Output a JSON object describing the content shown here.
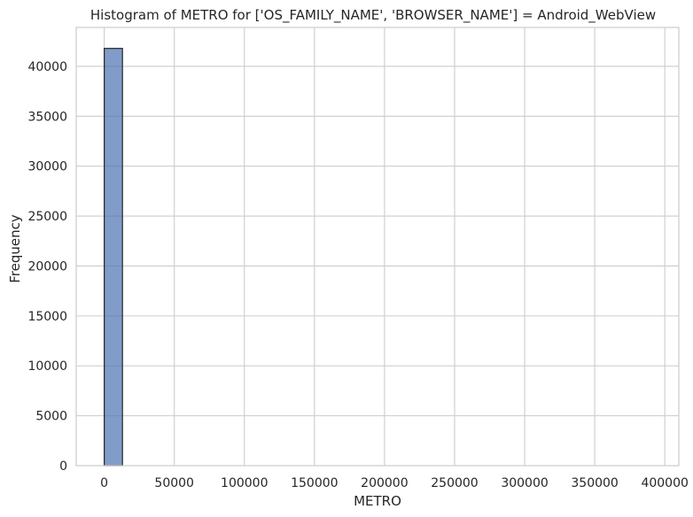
{
  "chart_data": {
    "type": "bar",
    "title": "Histogram of METRO for ['OS_FAMILY_NAME', 'BROWSER_NAME'] = Android_WebView",
    "xlabel": "METRO",
    "ylabel": "Frequency",
    "xlim": [
      -20000,
      410000
    ],
    "ylim": [
      0,
      43900
    ],
    "x_ticks": [
      0,
      50000,
      100000,
      150000,
      200000,
      250000,
      300000,
      350000,
      400000
    ],
    "y_ticks": [
      0,
      5000,
      10000,
      15000,
      20000,
      25000,
      30000,
      35000,
      40000
    ],
    "bins": [
      {
        "x0": 0,
        "x1": 13000,
        "count": 41800
      }
    ],
    "grid": true,
    "bar_color": "#4c72b0",
    "bar_edge_color": "#262626",
    "grid_color": "#cccccc",
    "spine_color": "#cccccc"
  }
}
